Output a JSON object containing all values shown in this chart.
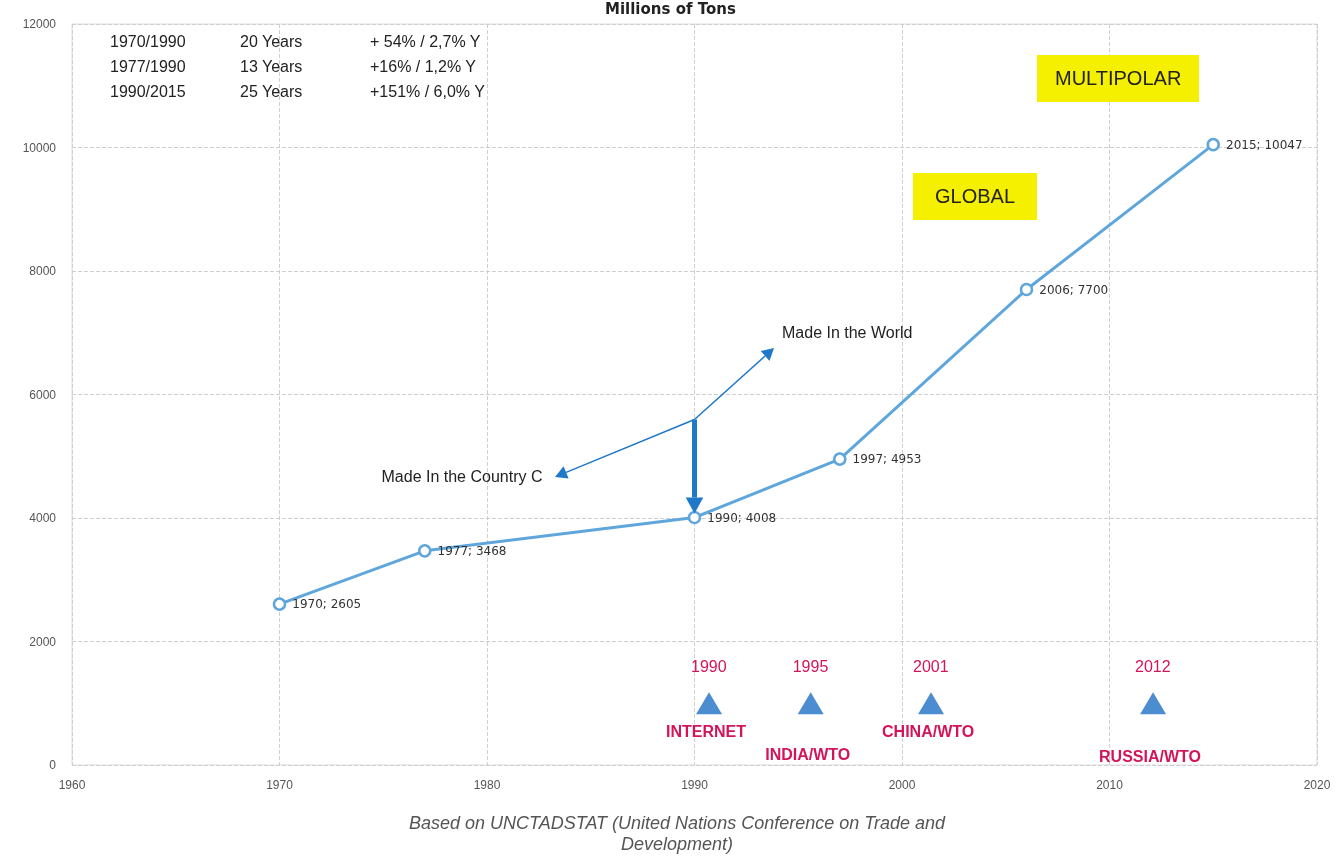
{
  "chart_data": {
    "type": "line",
    "title": "Millions of Tons",
    "series": [
      {
        "color": "#5ea6dc",
        "x": [
          1970,
          1977,
          1990,
          1997,
          2006,
          2015
        ],
        "values": [
          2605,
          3468,
          4008,
          4953,
          7700,
          10047
        ],
        "value_labels": [
          "1970; 2605",
          "1977; 3468",
          "1990; 4008",
          "1997; 4953",
          "2006; 7700",
          "2015; 10047"
        ]
      },
      {
        "type": "scatter",
        "color": "#1f6fc5",
        "marker": "triangle",
        "x": [
          1990.7,
          1995.6,
          2001.4,
          2012.1
        ],
        "values": [
          1000,
          1000,
          1000,
          1000
        ]
      }
    ],
    "xlim": [
      1960,
      2020
    ],
    "xticks": [
      1960,
      1970,
      1980,
      1990,
      2000,
      2010,
      2020
    ],
    "ylim": [
      0,
      12000
    ],
    "yticks": [
      0,
      2000,
      4000,
      6000,
      8000,
      10000,
      12000
    ],
    "grid": true,
    "marker": "circle",
    "line_style": "solid",
    "annotations": [
      "1970/1990",
      "20 Years",
      "+ 54% / 2,7% Y",
      "1977/1990",
      "13 Years",
      "+16% / 1,2% Y",
      "1990/2015",
      "25 Years",
      "+151% / 6,0% Y",
      "MULTIPOLAR",
      "GLOBAL",
      "Based on UNCTADSTAT (United Nations Conference on Trade and Development)",
      "Made In the World",
      "Made In the Country C",
      "1990",
      "1995",
      "2001",
      "2012",
      "INTERNET",
      "INDIA/WTO",
      "CHINA/WTO",
      "RUSSIA/WTO"
    ]
  }
}
